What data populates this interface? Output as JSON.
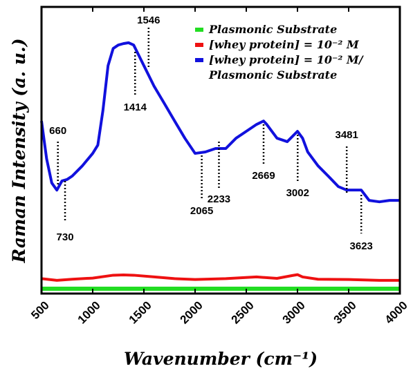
{
  "chart_data": {
    "type": "line",
    "x_label": "Wavenumber (cm⁻¹)",
    "y_label": "Raman Intensity (a. u.)",
    "xlim": [
      500,
      4000
    ],
    "xticks": [
      500,
      1000,
      1500,
      2000,
      2500,
      3000,
      3500,
      4000
    ],
    "ylim": [
      0,
      100
    ],
    "legend": "upper right",
    "peaks": [
      660,
      730,
      1414,
      1546,
      2065,
      2233,
      2669,
      3002,
      3481,
      3623
    ],
    "series": [
      {
        "name": "Plasmonic Substrate",
        "color": "#22dd22",
        "x": [
          500,
          1000,
          1500,
          2000,
          2500,
          3000,
          3500,
          4000
        ],
        "values": [
          1.7,
          1.7,
          1.7,
          1.7,
          1.7,
          1.7,
          1.7,
          1.7
        ]
      },
      {
        "name": "[whey protein] = 10⁻² M",
        "color": "#ee1111",
        "x": [
          500,
          650,
          800,
          1000,
          1200,
          1300,
          1400,
          1600,
          1800,
          2000,
          2300,
          2600,
          2800,
          2950,
          3000,
          3050,
          3200,
          3500,
          3800,
          4000
        ],
        "values": [
          5.2,
          4.6,
          5.0,
          5.4,
          6.4,
          6.5,
          6.4,
          5.8,
          5.2,
          4.9,
          5.2,
          5.8,
          5.3,
          6.3,
          6.6,
          5.8,
          5.0,
          4.9,
          4.6,
          4.6
        ]
      },
      {
        "name": "[whey protein] = 10⁻² M/\nPlasmonic Substrate",
        "color": "#1111dd",
        "x": [
          500,
          550,
          600,
          650,
          700,
          750,
          800,
          900,
          1000,
          1050,
          1100,
          1150,
          1200,
          1250,
          1300,
          1350,
          1400,
          1450,
          1500,
          1550,
          1600,
          1700,
          1800,
          1900,
          2000,
          2100,
          2200,
          2300,
          2400,
          2500,
          2600,
          2669,
          2700,
          2800,
          2900,
          3000,
          3050,
          3100,
          3200,
          3300,
          3400,
          3481,
          3550,
          3623,
          3700,
          3800,
          3900,
          4000
        ],
        "values": [
          60.2,
          47.0,
          38.6,
          36.1,
          39.3,
          39.8,
          41.0,
          44.6,
          48.9,
          51.8,
          63.9,
          79.5,
          85.5,
          86.7,
          87.2,
          87.5,
          86.7,
          83.1,
          79.5,
          75.9,
          72.3,
          66.3,
          60.2,
          54.2,
          48.9,
          49.4,
          50.6,
          50.6,
          54.2,
          56.6,
          59.0,
          60.2,
          59.0,
          54.2,
          53.0,
          56.6,
          54.2,
          49.4,
          44.6,
          41.0,
          37.3,
          36.1,
          36.1,
          36.1,
          32.5,
          32.0,
          32.5,
          32.5
        ]
      }
    ]
  }
}
